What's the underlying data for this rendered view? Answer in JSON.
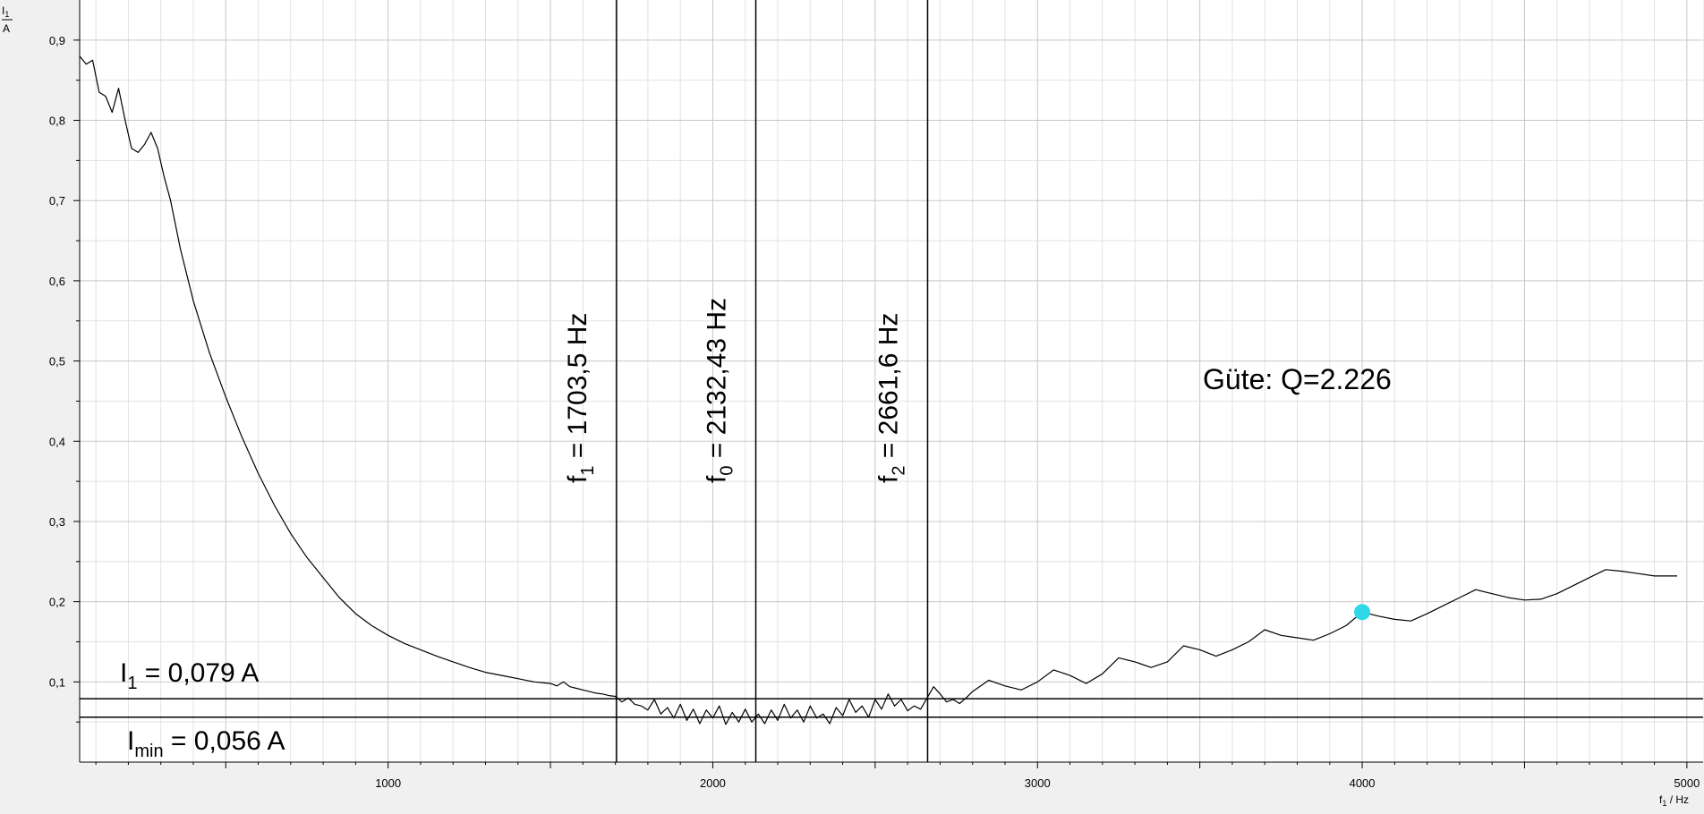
{
  "chart_data": {
    "type": "line",
    "title": "",
    "xlabel": {
      "var": "f",
      "sub": "1",
      "unit": " / Hz"
    },
    "ylabel": {
      "var": "I",
      "sub": "1",
      "unit": "A"
    },
    "xlim": [
      50,
      5050
    ],
    "ylim": [
      0,
      0.95
    ],
    "xticks": [
      1000,
      2000,
      3000,
      4000,
      5000
    ],
    "xtick_labels": [
      "1000",
      "2000",
      "3000",
      "4000",
      "5000"
    ],
    "yticks": [
      0.1,
      0.2,
      0.3,
      0.4,
      0.5,
      0.6,
      0.7,
      0.8,
      0.9
    ],
    "ytick_labels": [
      "0,1",
      "0,2",
      "0,3",
      "0,4",
      "0,5",
      "0,6",
      "0,7",
      "0,8",
      "0,9"
    ],
    "grid": true,
    "series": [
      {
        "name": "I1",
        "color": "#000000",
        "x": [
          50,
          70,
          90,
          110,
          130,
          150,
          170,
          190,
          210,
          230,
          250,
          270,
          290,
          310,
          330,
          360,
          400,
          450,
          500,
          550,
          600,
          650,
          700,
          750,
          800,
          850,
          900,
          950,
          1000,
          1050,
          1100,
          1150,
          1200,
          1250,
          1300,
          1350,
          1400,
          1450,
          1500,
          1520,
          1540,
          1560,
          1580,
          1600,
          1620,
          1640,
          1660,
          1680,
          1700,
          1720,
          1740,
          1760,
          1780,
          1800,
          1820,
          1840,
          1860,
          1880,
          1900,
          1920,
          1940,
          1960,
          1980,
          2000,
          2020,
          2040,
          2060,
          2080,
          2100,
          2120,
          2140,
          2160,
          2180,
          2200,
          2220,
          2240,
          2260,
          2280,
          2300,
          2320,
          2340,
          2360,
          2380,
          2400,
          2420,
          2440,
          2460,
          2480,
          2500,
          2520,
          2540,
          2560,
          2580,
          2600,
          2620,
          2640,
          2660,
          2680,
          2700,
          2720,
          2740,
          2760,
          2780,
          2800,
          2850,
          2900,
          2950,
          3000,
          3050,
          3100,
          3150,
          3200,
          3250,
          3300,
          3350,
          3400,
          3450,
          3500,
          3550,
          3600,
          3650,
          3700,
          3750,
          3800,
          3850,
          3900,
          3950,
          4000,
          4050,
          4100,
          4150,
          4200,
          4250,
          4300,
          4350,
          4400,
          4450,
          4500,
          4550,
          4600,
          4650,
          4700,
          4750,
          4800,
          4850,
          4900,
          4950,
          4970
        ],
        "y": [
          0.88,
          0.87,
          0.875,
          0.835,
          0.83,
          0.81,
          0.84,
          0.8,
          0.765,
          0.76,
          0.77,
          0.785,
          0.765,
          0.73,
          0.7,
          0.64,
          0.575,
          0.51,
          0.455,
          0.405,
          0.36,
          0.32,
          0.285,
          0.255,
          0.23,
          0.205,
          0.185,
          0.17,
          0.158,
          0.148,
          0.14,
          0.132,
          0.125,
          0.118,
          0.112,
          0.108,
          0.104,
          0.1,
          0.098,
          0.095,
          0.1,
          0.094,
          0.092,
          0.09,
          0.088,
          0.086,
          0.085,
          0.083,
          0.082,
          0.075,
          0.08,
          0.072,
          0.07,
          0.065,
          0.078,
          0.06,
          0.068,
          0.055,
          0.072,
          0.052,
          0.066,
          0.048,
          0.065,
          0.055,
          0.07,
          0.047,
          0.062,
          0.05,
          0.066,
          0.05,
          0.06,
          0.048,
          0.065,
          0.052,
          0.072,
          0.055,
          0.065,
          0.05,
          0.07,
          0.055,
          0.06,
          0.048,
          0.068,
          0.058,
          0.078,
          0.062,
          0.07,
          0.056,
          0.078,
          0.066,
          0.085,
          0.07,
          0.078,
          0.064,
          0.07,
          0.066,
          0.08,
          0.094,
          0.085,
          0.075,
          0.078,
          0.073,
          0.08,
          0.088,
          0.102,
          0.095,
          0.09,
          0.1,
          0.115,
          0.108,
          0.098,
          0.11,
          0.13,
          0.125,
          0.118,
          0.125,
          0.145,
          0.14,
          0.132,
          0.14,
          0.15,
          0.165,
          0.158,
          0.155,
          0.152,
          0.16,
          0.17,
          0.187,
          0.182,
          0.178,
          0.176,
          0.185,
          0.195,
          0.205,
          0.215,
          0.21,
          0.205,
          0.202,
          0.203,
          0.21,
          0.22,
          0.23,
          0.24,
          0.238,
          0.235,
          0.232,
          0.232,
          0.232
        ]
      }
    ],
    "marker": {
      "x": 4000,
      "y": 0.187,
      "color": "#2fd8e8"
    },
    "vlines": [
      {
        "x": 1703.5,
        "name": "f1",
        "label_var": "f",
        "label_sub": "1",
        "label_text": " =  1703,5 Hz"
      },
      {
        "x": 2132.43,
        "name": "f0",
        "label_var": "f",
        "label_sub": "0",
        "label_text": " =  2132,43 Hz"
      },
      {
        "x": 2661.6,
        "name": "f2",
        "label_var": "f",
        "label_sub": "2",
        "label_text": " =  2661,6 Hz"
      }
    ],
    "hlines": [
      {
        "y": 0.079,
        "name": "i1",
        "label_var": "I",
        "label_sub": "1",
        "label_text": " =  0,079 A"
      },
      {
        "y": 0.056,
        "name": "imin",
        "label_var": "I",
        "label_sub": "min",
        "label_text": "  =  0,056 A"
      }
    ],
    "annotation": {
      "text": "Güte: Q=2.226"
    }
  }
}
